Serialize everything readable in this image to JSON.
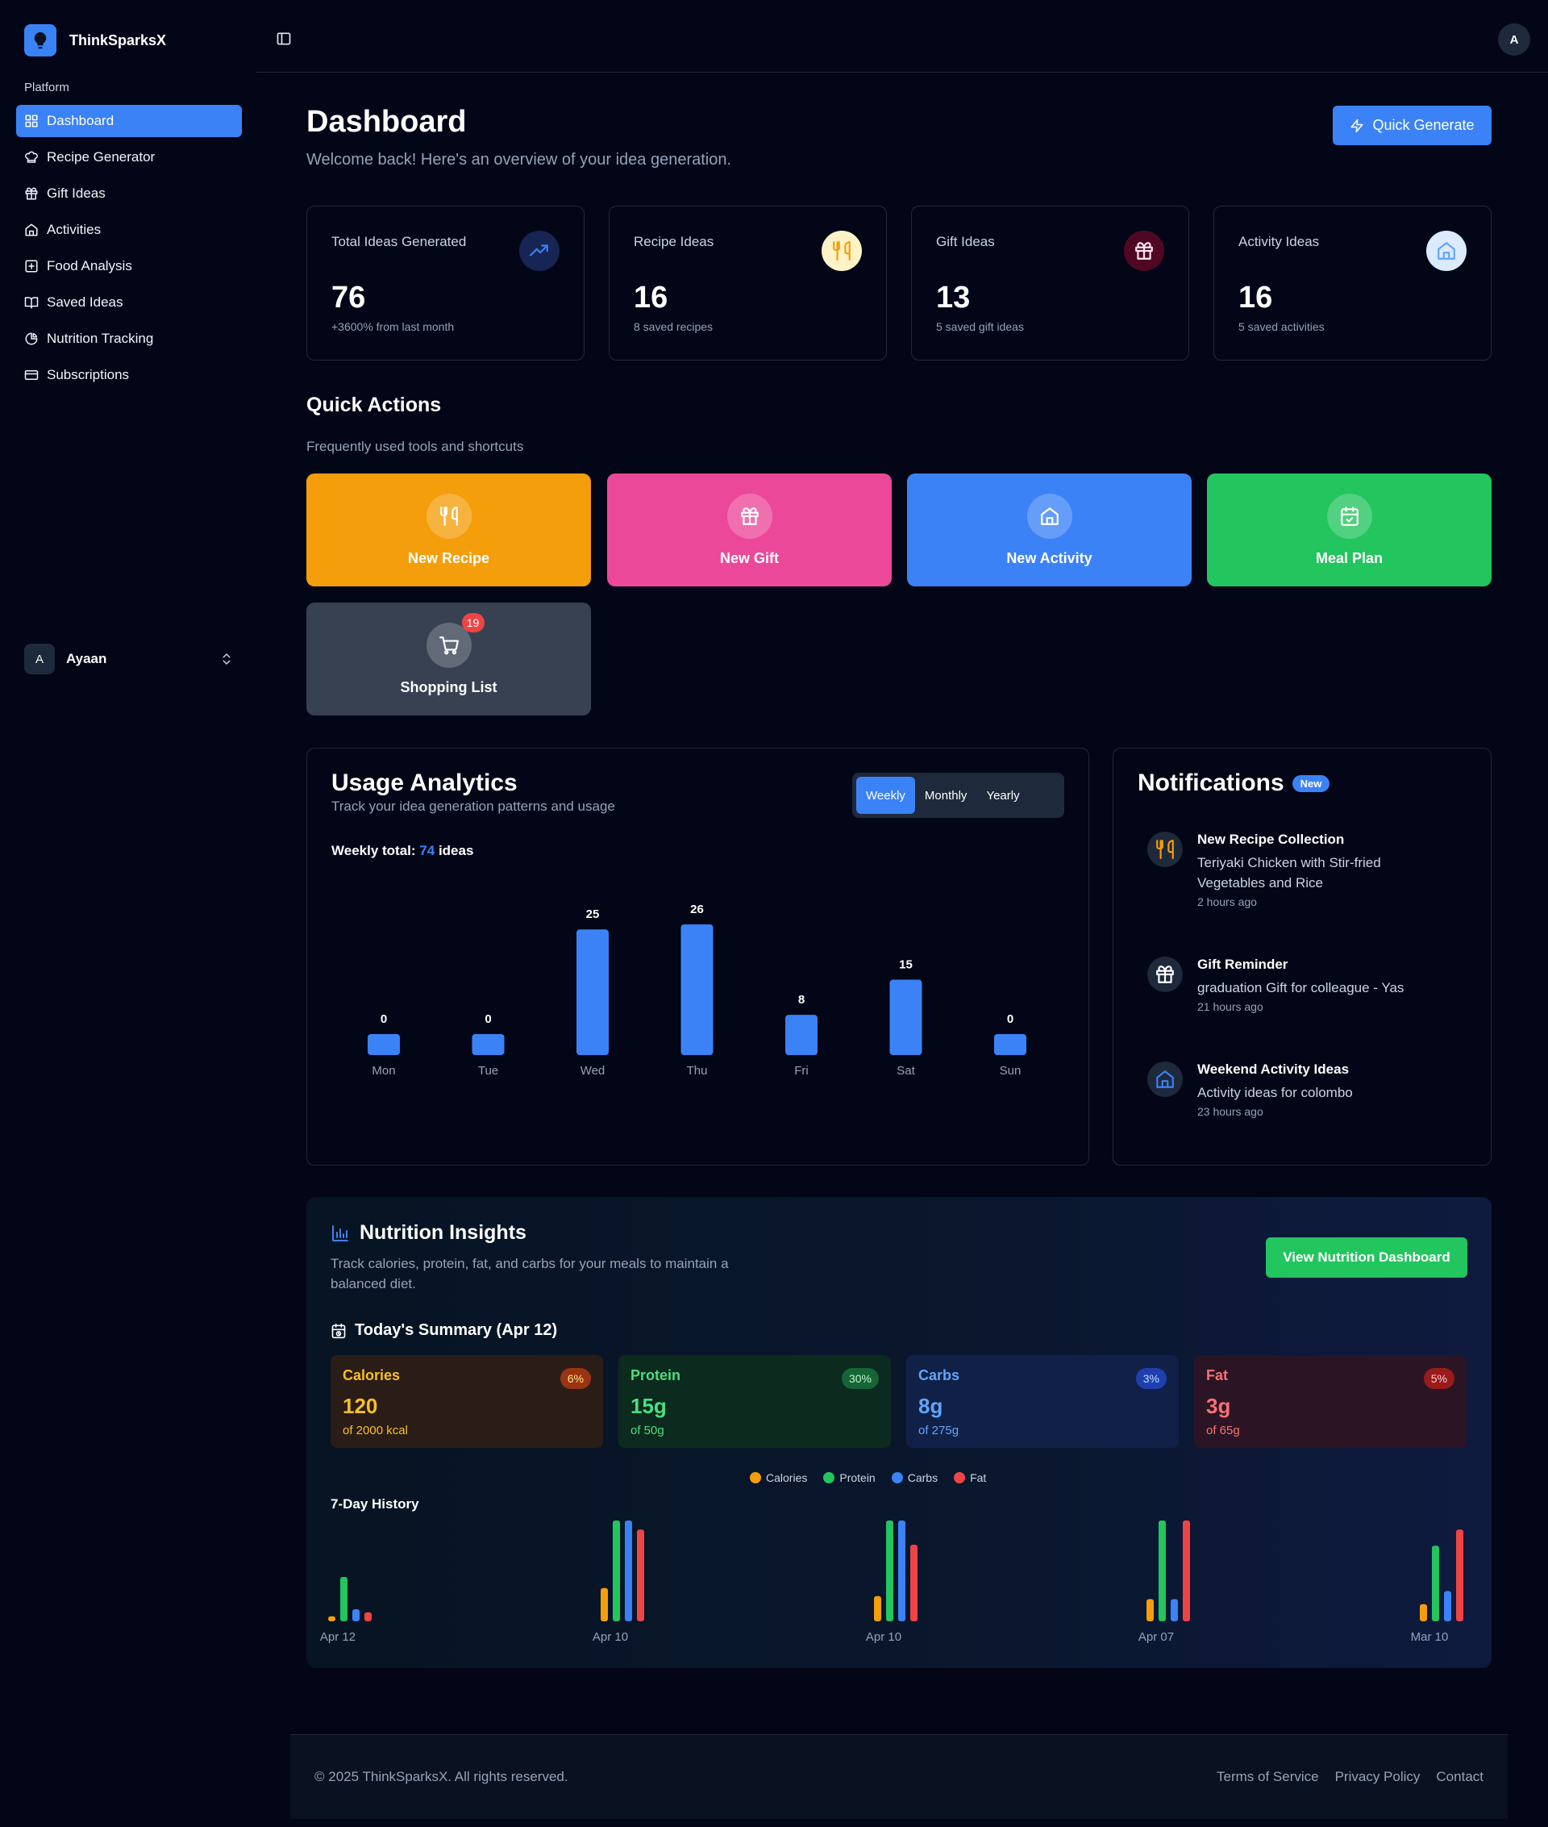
{
  "brand": {
    "name": "ThinkSparksX"
  },
  "sidebar": {
    "section_label": "Platform",
    "items": [
      {
        "label": "Dashboard",
        "icon": "grid-icon"
      },
      {
        "label": "Recipe Generator",
        "icon": "chef-hat-icon"
      },
      {
        "label": "Gift Ideas",
        "icon": "gift-icon"
      },
      {
        "label": "Activities",
        "icon": "home-icon"
      },
      {
        "label": "Food Analysis",
        "icon": "plus-square-icon"
      },
      {
        "label": "Saved Ideas",
        "icon": "book-open-icon"
      },
      {
        "label": "Nutrition Tracking",
        "icon": "pie-chart-icon"
      },
      {
        "label": "Subscriptions",
        "icon": "credit-card-icon"
      }
    ],
    "user": {
      "initial": "A",
      "name": "Ayaan"
    }
  },
  "topbar": {
    "avatar_initial": "A"
  },
  "header": {
    "title": "Dashboard",
    "subtitle": "Welcome back! Here's an overview of your idea generation.",
    "quick_generate": "Quick Generate"
  },
  "stats": [
    {
      "label": "Total Ideas Generated",
      "value": "76",
      "sub": "+3600% from last month",
      "icon": "trending-up-icon",
      "color": "#3b82f6"
    },
    {
      "label": "Recipe Ideas",
      "value": "16",
      "sub": "8 saved recipes",
      "icon": "utensils-icon",
      "color": "#f59e0b"
    },
    {
      "label": "Gift Ideas",
      "value": "13",
      "sub": "5 saved gift ideas",
      "icon": "gift-icon",
      "color": "#ec4899"
    },
    {
      "label": "Activity Ideas",
      "value": "16",
      "sub": "5 saved activities",
      "icon": "home-icon",
      "color": "#60a5fa"
    }
  ],
  "quick_actions": {
    "title": "Quick Actions",
    "subtitle": "Frequently used tools and shortcuts",
    "items": [
      {
        "label": "New Recipe",
        "color": "#f59e0b",
        "icon": "utensils-icon"
      },
      {
        "label": "New Gift",
        "color": "#ec4899",
        "icon": "gift-icon"
      },
      {
        "label": "New Activity",
        "color": "#3b82f6",
        "icon": "home-icon"
      },
      {
        "label": "Meal Plan",
        "color": "#22c55e",
        "icon": "calendar-check-icon"
      },
      {
        "label": "Shopping List",
        "color": "#374151",
        "icon": "cart-icon",
        "count": "19"
      }
    ]
  },
  "usage": {
    "title": "Usage Analytics",
    "subtitle": "Track your idea generation patterns and usage",
    "tabs": [
      "Weekly",
      "Monthly",
      "Yearly"
    ],
    "active_tab": "Weekly",
    "total_label": "Weekly total:",
    "total_value": "74",
    "total_unit": "ideas"
  },
  "chart_data": [
    {
      "type": "bar",
      "categories": [
        "Mon",
        "Tue",
        "Wed",
        "Thu",
        "Fri",
        "Sat",
        "Sun"
      ],
      "values": [
        0,
        0,
        25,
        26,
        8,
        15,
        0
      ],
      "color": "#3b82f6"
    },
    {
      "type": "bar",
      "categories": [
        "Apr 12",
        "Apr 10",
        "Apr 10",
        "Apr 07",
        "Mar 10"
      ],
      "series": [
        {
          "name": "Calories",
          "color": "#f59e0b",
          "values": [
            0.05,
            0.33,
            0.25,
            0.22,
            0.17
          ]
        },
        {
          "name": "Protein",
          "color": "#22c55e",
          "values": [
            0.44,
            1.0,
            1.0,
            1.0,
            0.75
          ]
        },
        {
          "name": "Carbs",
          "color": "#3b82f6",
          "values": [
            0.12,
            1.0,
            1.0,
            0.22,
            0.3
          ]
        },
        {
          "name": "Fat",
          "color": "#ef4444",
          "values": [
            0.09,
            0.91,
            0.76,
            1.0,
            0.91
          ]
        }
      ],
      "ylim": [
        0,
        1
      ]
    }
  ],
  "notifications": {
    "title": "Notifications",
    "badge": "New",
    "items": [
      {
        "title": "New Recipe Collection",
        "body": "Teriyaki Chicken with Stir-fried Vegetables and Rice",
        "time": "2 hours ago",
        "icon": "utensils-icon",
        "color": "#f59e0b"
      },
      {
        "title": "Gift Reminder",
        "body": "graduation Gift for colleague - Yas",
        "time": "21 hours ago",
        "icon": "gift-icon",
        "color": "#ffffff"
      },
      {
        "title": "Weekend Activity Ideas",
        "body": "Activity ideas for colombo",
        "time": "23 hours ago",
        "icon": "home-icon",
        "color": "#3b82f6"
      }
    ]
  },
  "nutrition": {
    "title": "Nutrition Insights",
    "subtitle": "Track calories, protein, fat, and carbs for your meals to maintain a balanced diet.",
    "button": "View Nutrition Dashboard",
    "today_label": "Today's Summary (Apr 12)",
    "macros": [
      {
        "name": "Calories",
        "value": "120",
        "of": "of 2000 kcal",
        "pct": "6%",
        "text": "#fbbf24",
        "bg": "#2a1d17",
        "pill": "#9a3412"
      },
      {
        "name": "Protein",
        "value": "15g",
        "of": "of 50g",
        "pct": "30%",
        "text": "#4ade80",
        "bg": "#0c2a1e",
        "pill": "#166534"
      },
      {
        "name": "Carbs",
        "value": "8g",
        "of": "of 275g",
        "pct": "3%",
        "text": "#60a5fa",
        "bg": "#112046",
        "pill": "#1e40af"
      },
      {
        "name": "Fat",
        "value": "3g",
        "of": "of 65g",
        "pct": "5%",
        "text": "#f87171",
        "bg": "#2b1525",
        "pill": "#991b1b"
      }
    ],
    "legend": [
      "Calories",
      "Protein",
      "Carbs",
      "Fat"
    ],
    "history_title": "7-Day History"
  },
  "footer": {
    "copyright": "© 2025 ThinkSparksX. All rights reserved.",
    "links": [
      "Terms of Service",
      "Privacy Policy",
      "Contact"
    ]
  }
}
